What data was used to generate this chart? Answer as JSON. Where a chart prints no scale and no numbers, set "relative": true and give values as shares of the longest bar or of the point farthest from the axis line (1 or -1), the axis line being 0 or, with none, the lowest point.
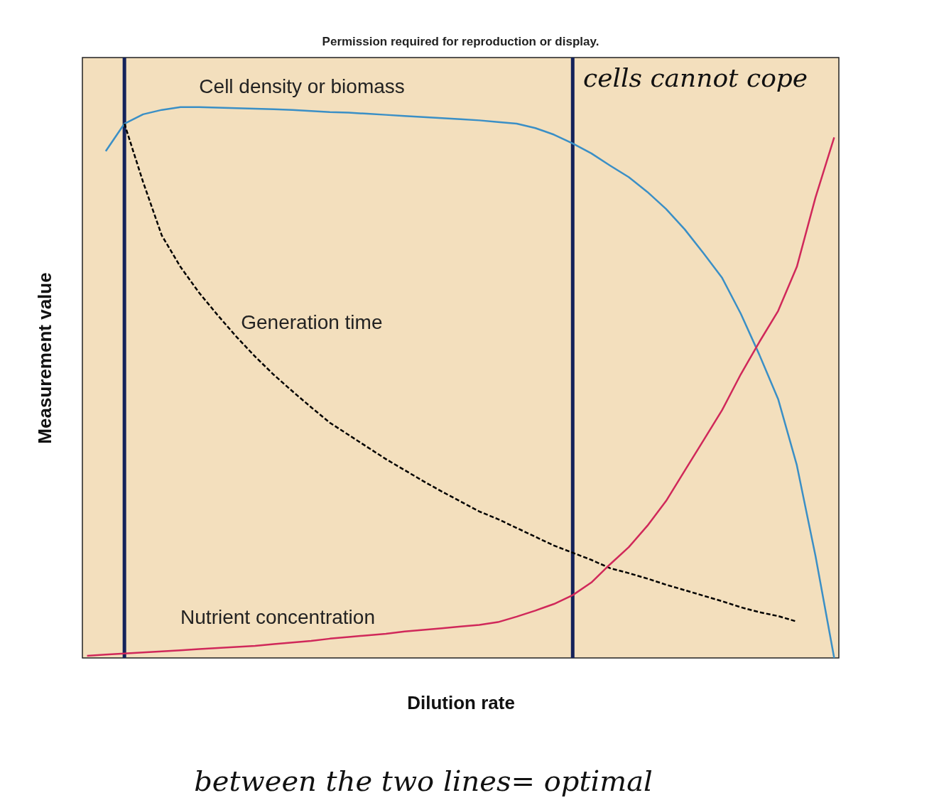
{
  "chart_data": {
    "type": "line",
    "relative": true,
    "xlabel": "Dilution rate",
    "ylabel": "Measurement value",
    "ylim": [
      0,
      1.09
    ],
    "tick_labels": false,
    "grid": false,
    "marker": "none",
    "categories": [
      null,
      null,
      null,
      null,
      null,
      null,
      null,
      null,
      null,
      null,
      null,
      null,
      null,
      null,
      null,
      null,
      null,
      null,
      null,
      null,
      null,
      null,
      null,
      null,
      null,
      null,
      null,
      null,
      null,
      null,
      null,
      null,
      null,
      null,
      null,
      null,
      null,
      null,
      null,
      null,
      null
    ],
    "series": [
      {
        "name": "Cell density or biomass",
        "color": "#3a8fc6",
        "line_style": "solid",
        "values": [
          null,
          0.92,
          0.97,
          0.987,
          0.995,
          1,
          1,
          0.999,
          0.998,
          0.997,
          0.996,
          0.995,
          0.993,
          0.991,
          0.99,
          0.988,
          0.986,
          0.984,
          0.982,
          0.98,
          0.978,
          0.976,
          0.973,
          0.97,
          0.962,
          0.95,
          0.934,
          0.916,
          0.894,
          0.873,
          0.846,
          0.815,
          0.778,
          0.735,
          0.69,
          0.625,
          0.55,
          0.47,
          0.35,
          0.185,
          0
        ]
      },
      {
        "name": "Generation time",
        "color": "#000000",
        "line_style": "dashed",
        "values": [
          null,
          null,
          0.97,
          0.864,
          0.767,
          0.71,
          0.663,
          0.622,
          0.583,
          0.547,
          0.514,
          0.484,
          0.455,
          0.427,
          0.405,
          0.383,
          0.361,
          0.341,
          0.321,
          0.302,
          0.284,
          0.266,
          0.252,
          0.236,
          0.22,
          0.204,
          0.191,
          0.178,
          0.163,
          0.154,
          0.144,
          0.133,
          0.123,
          0.113,
          0.103,
          0.092,
          0.083,
          0.076,
          0.066,
          null,
          null
        ]
      },
      {
        "name": "Nutrient concentration",
        "color": "#d0285a",
        "line_style": "solid",
        "values": [
          0.004,
          0.006,
          0.008,
          0.01,
          0.012,
          0.014,
          0.016,
          0.018,
          0.02,
          0.022,
          0.025,
          0.028,
          0.031,
          0.035,
          0.038,
          0.041,
          0.044,
          0.048,
          0.051,
          0.054,
          0.057,
          0.06,
          0.065,
          0.075,
          0.086,
          0.098,
          0.114,
          0.137,
          0.17,
          0.201,
          0.24,
          0.285,
          0.34,
          0.395,
          0.45,
          0.515,
          0.574,
          0.63,
          0.71,
          0.836,
          0.945
        ]
      }
    ],
    "annotations": [
      "Permission required for reproduction or display.",
      "cells cannot cope",
      "between the two lines= optimal"
    ]
  }
}
